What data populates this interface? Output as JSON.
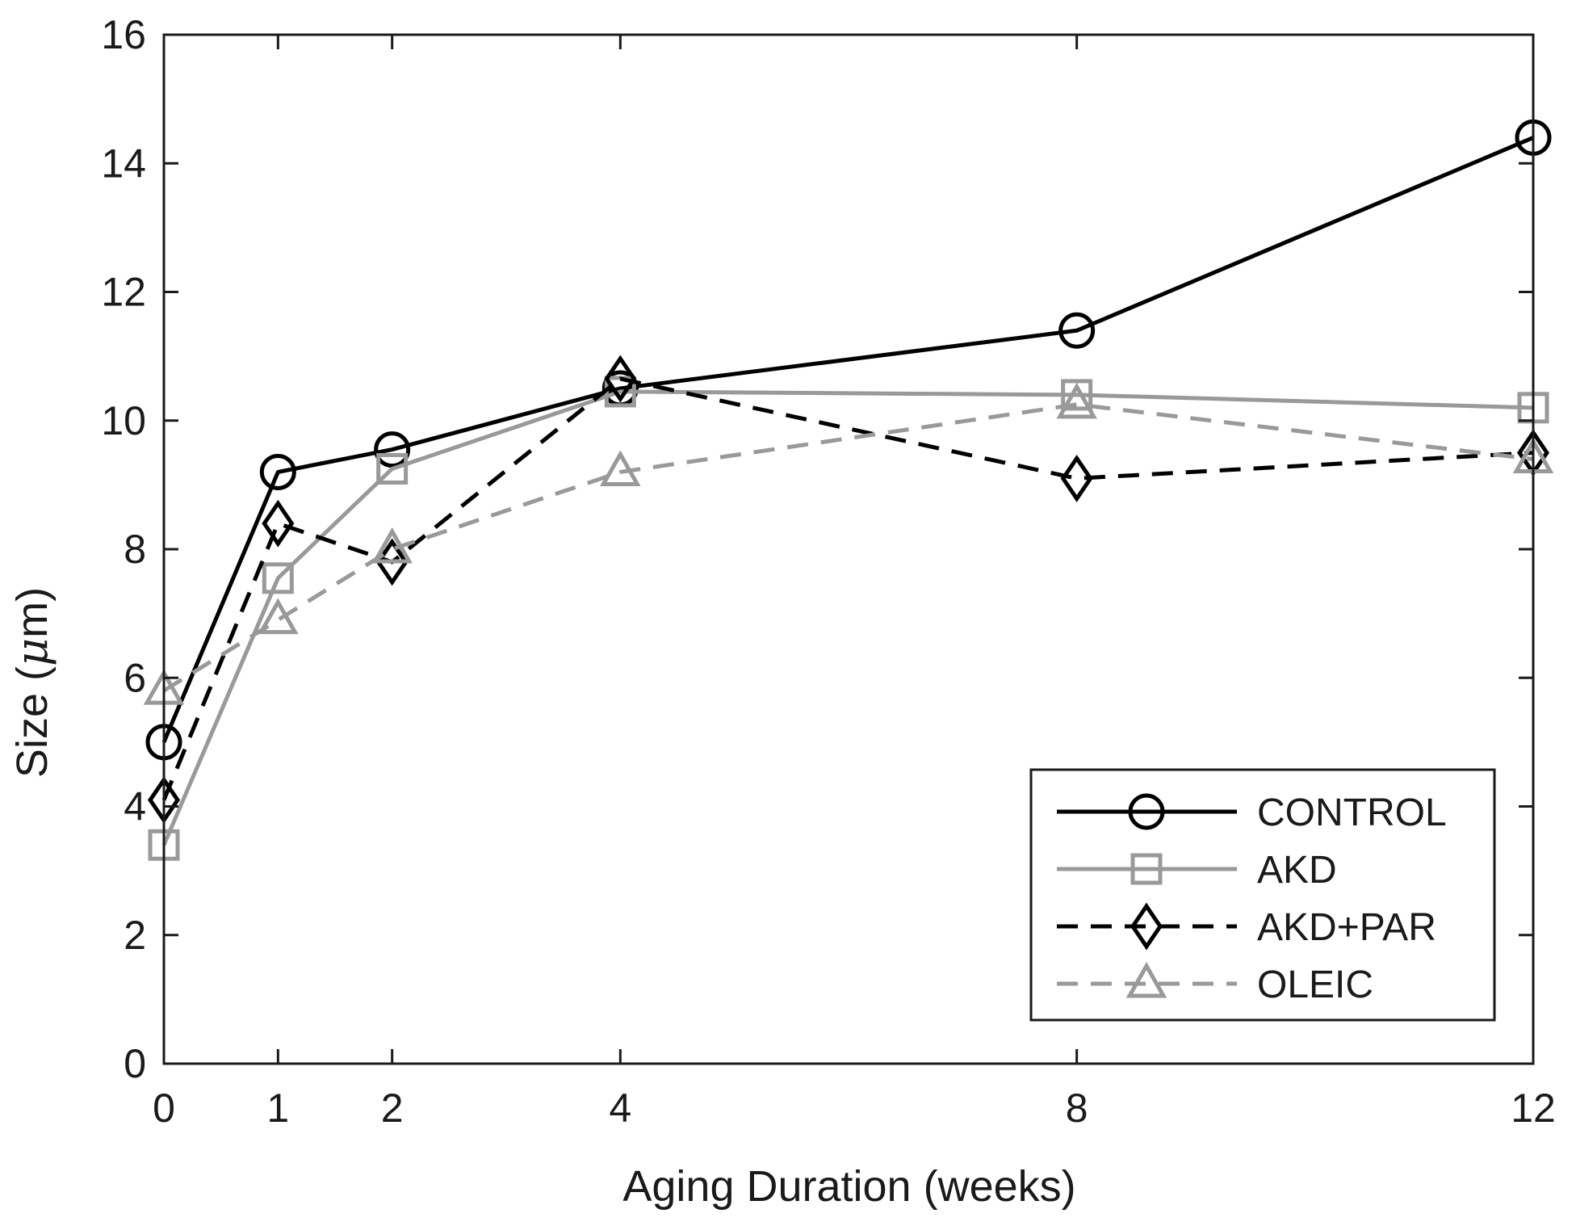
{
  "chart_data": {
    "type": "line",
    "title": "",
    "xlabel": "Aging Duration (weeks)",
    "ylabel_prefix": "Size (",
    "ylabel_mu": "μ",
    "ylabel_suffix": "m)",
    "x": [
      0,
      1,
      2,
      4,
      8,
      12
    ],
    "xticks": [
      0,
      1,
      2,
      4,
      8,
      12
    ],
    "yticks": [
      0,
      2,
      4,
      6,
      8,
      10,
      12,
      14,
      16
    ],
    "xlim": [
      0,
      12
    ],
    "ylim": [
      0,
      16
    ],
    "grid": false,
    "legend_position": "bottom-right",
    "series": [
      {
        "name": "CONTROL",
        "values": [
          5.0,
          9.2,
          9.55,
          10.5,
          11.4,
          14.4
        ],
        "color": "#000000",
        "dash": "solid",
        "marker": "circle"
      },
      {
        "name": "AKD",
        "values": [
          3.4,
          7.55,
          9.25,
          10.45,
          10.4,
          10.2
        ],
        "color": "#999999",
        "dash": "solid",
        "marker": "square"
      },
      {
        "name": "AKD+PAR",
        "values": [
          4.1,
          8.4,
          7.8,
          10.65,
          9.1,
          9.5
        ],
        "color": "#000000",
        "dash": "dashed",
        "marker": "diamond"
      },
      {
        "name": "OLEIC",
        "values": [
          5.8,
          6.9,
          8.0,
          9.2,
          10.25,
          9.4
        ],
        "color": "#999999",
        "dash": "dashed",
        "marker": "triangle"
      }
    ]
  }
}
